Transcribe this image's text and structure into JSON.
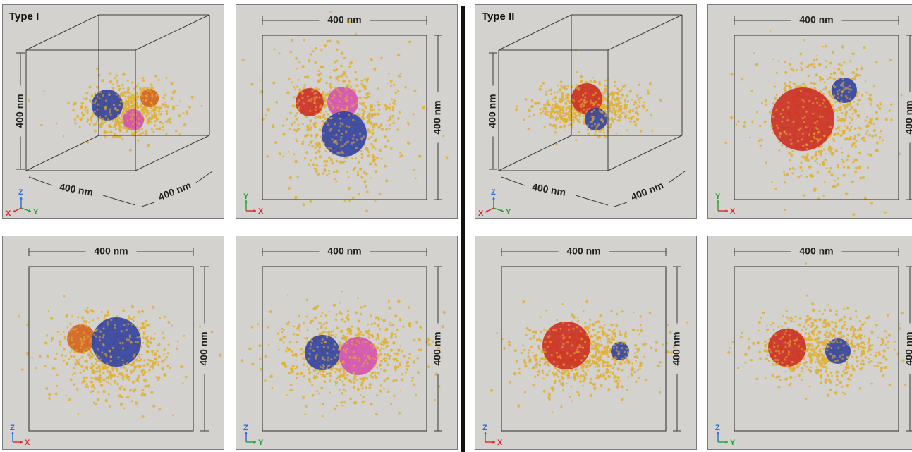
{
  "figure": {
    "type_i_label": "Type I",
    "type_ii_label": "Type II",
    "scale_label": "400 nm",
    "axes": {
      "x": "X",
      "y": "Y",
      "z": "Z"
    },
    "colors": {
      "panel_bg": "#d3d2cf",
      "frame": "#3a3a3a",
      "dots": "#e0b033",
      "blue_cluster": "#2d3fa3",
      "red_cluster": "#cc2a20",
      "pink_cluster": "#d54fb0",
      "orange_cluster": "#d4611e",
      "axis_x": "#e0242a",
      "axis_y": "#23a136",
      "axis_z": "#2a6cd0"
    }
  },
  "panels": [
    {
      "id": "type-i-perspective",
      "view": "perspective",
      "group": "type-i",
      "clusters": [
        {
          "color": "blue",
          "size": "medium"
        },
        {
          "color": "pink",
          "size": "small"
        },
        {
          "color": "orange",
          "size": "small"
        }
      ]
    },
    {
      "id": "type-i-xy",
      "view": "xy",
      "group": "type-i",
      "clusters": [
        {
          "color": "red",
          "size": "small"
        },
        {
          "color": "pink",
          "size": "medium"
        },
        {
          "color": "blue",
          "size": "large"
        }
      ]
    },
    {
      "id": "type-i-xz",
      "view": "xz",
      "group": "type-i",
      "clusters": [
        {
          "color": "orange",
          "size": "small"
        },
        {
          "color": "blue",
          "size": "large"
        }
      ]
    },
    {
      "id": "type-i-yz",
      "view": "yz",
      "group": "type-i",
      "clusters": [
        {
          "color": "blue",
          "size": "medium"
        },
        {
          "color": "pink",
          "size": "medium"
        }
      ]
    },
    {
      "id": "type-ii-perspective",
      "view": "perspective",
      "group": "type-ii",
      "clusters": [
        {
          "color": "red",
          "size": "medium"
        },
        {
          "color": "blue",
          "size": "small"
        }
      ]
    },
    {
      "id": "type-ii-xy",
      "view": "xy",
      "group": "type-ii",
      "clusters": [
        {
          "color": "red",
          "size": "large"
        },
        {
          "color": "blue",
          "size": "small"
        }
      ]
    },
    {
      "id": "type-ii-xz",
      "view": "xz",
      "group": "type-ii",
      "clusters": [
        {
          "color": "red",
          "size": "large"
        },
        {
          "color": "blue",
          "size": "small"
        }
      ]
    },
    {
      "id": "type-ii-yz",
      "view": "yz",
      "group": "type-ii",
      "clusters": [
        {
          "color": "red",
          "size": "medium"
        },
        {
          "color": "blue",
          "size": "small"
        }
      ]
    }
  ]
}
